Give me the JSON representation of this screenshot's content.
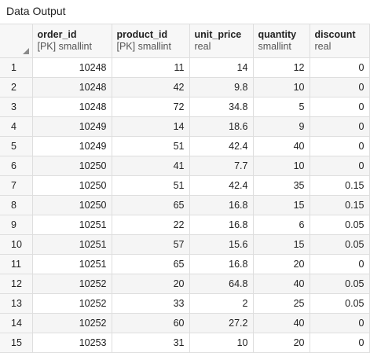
{
  "panel": {
    "title": "Data Output"
  },
  "columns": [
    {
      "name": "order_id",
      "type": "[PK] smallint"
    },
    {
      "name": "product_id",
      "type": "[PK] smallint"
    },
    {
      "name": "unit_price",
      "type": "real"
    },
    {
      "name": "quantity",
      "type": "smallint"
    },
    {
      "name": "discount",
      "type": "real"
    }
  ],
  "rows": [
    {
      "n": "1",
      "cells": [
        "10248",
        "11",
        "14",
        "12",
        "0"
      ]
    },
    {
      "n": "2",
      "cells": [
        "10248",
        "42",
        "9.8",
        "10",
        "0"
      ]
    },
    {
      "n": "3",
      "cells": [
        "10248",
        "72",
        "34.8",
        "5",
        "0"
      ]
    },
    {
      "n": "4",
      "cells": [
        "10249",
        "14",
        "18.6",
        "9",
        "0"
      ]
    },
    {
      "n": "5",
      "cells": [
        "10249",
        "51",
        "42.4",
        "40",
        "0"
      ]
    },
    {
      "n": "6",
      "cells": [
        "10250",
        "41",
        "7.7",
        "10",
        "0"
      ]
    },
    {
      "n": "7",
      "cells": [
        "10250",
        "51",
        "42.4",
        "35",
        "0.15"
      ]
    },
    {
      "n": "8",
      "cells": [
        "10250",
        "65",
        "16.8",
        "15",
        "0.15"
      ]
    },
    {
      "n": "9",
      "cells": [
        "10251",
        "22",
        "16.8",
        "6",
        "0.05"
      ]
    },
    {
      "n": "10",
      "cells": [
        "10251",
        "57",
        "15.6",
        "15",
        "0.05"
      ]
    },
    {
      "n": "11",
      "cells": [
        "10251",
        "65",
        "16.8",
        "20",
        "0"
      ]
    },
    {
      "n": "12",
      "cells": [
        "10252",
        "20",
        "64.8",
        "40",
        "0.05"
      ]
    },
    {
      "n": "13",
      "cells": [
        "10252",
        "33",
        "2",
        "25",
        "0.05"
      ]
    },
    {
      "n": "14",
      "cells": [
        "10252",
        "60",
        "27.2",
        "40",
        "0"
      ]
    },
    {
      "n": "15",
      "cells": [
        "10253",
        "31",
        "10",
        "20",
        "0"
      ]
    }
  ]
}
